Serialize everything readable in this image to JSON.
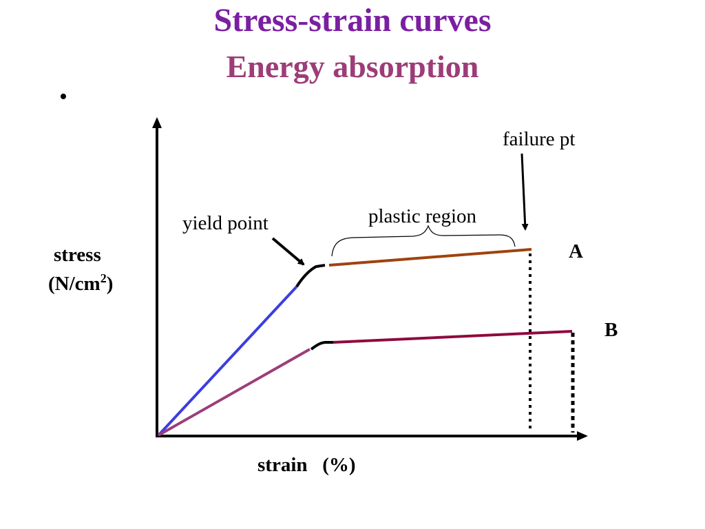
{
  "title": "Stress-strain curves",
  "subtitle": "Energy absorption",
  "bullet": "•",
  "labels": {
    "failure": "failure pt",
    "yield": "yield point",
    "plastic": "plastic region",
    "stress": "stress",
    "units_open": "(N/cm",
    "units_sup": "2",
    "units_close": ")",
    "strain": "strain   (%)",
    "curve_a": "A",
    "curve_b": "B"
  },
  "colors": {
    "title": "#7b1fa2",
    "subtitle": "#9c3d78",
    "a_elastic": "#3b3ee0",
    "a_plastic": "#a0420e",
    "b_elastic": "#9c3d78",
    "b_plastic": "#8e0a3e",
    "yield_segment": "#000000"
  }
}
